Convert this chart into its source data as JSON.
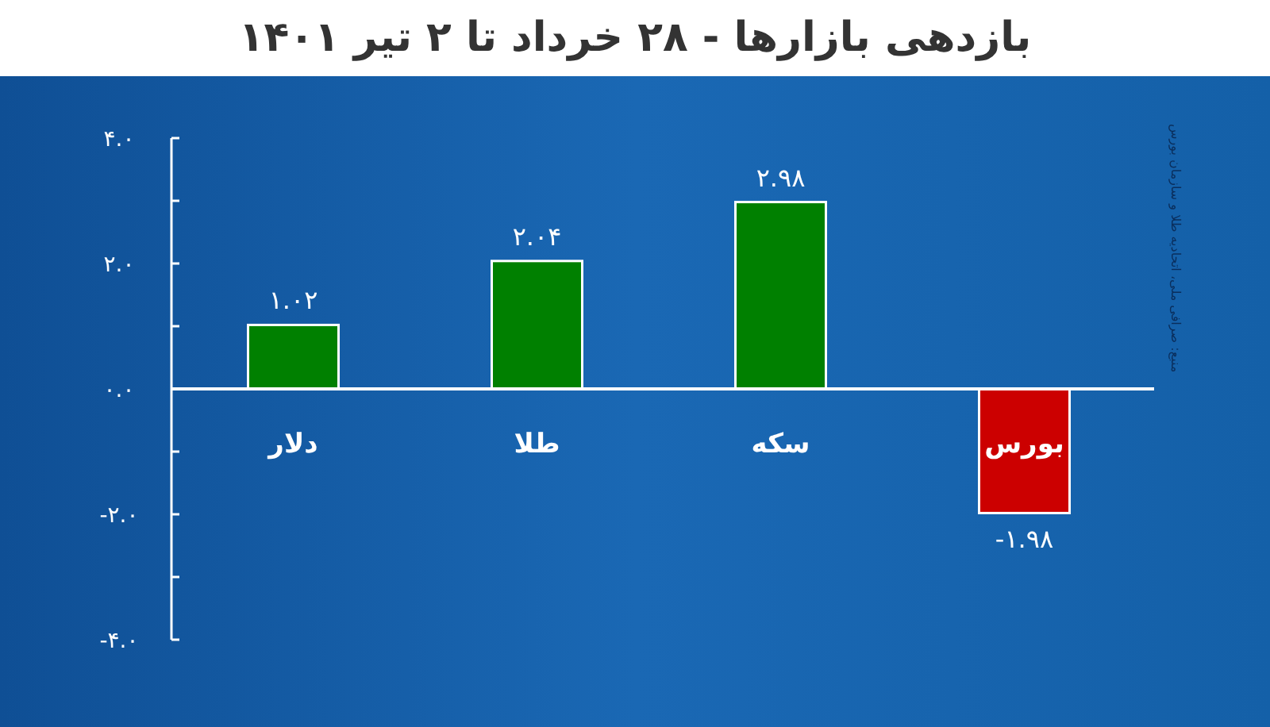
{
  "chart_data": {
    "type": "bar",
    "title": "بازدهی بازارها - ۲۸ خرداد تا ۲ تیر ۱۴۰۱",
    "categories": [
      "دلار",
      "طلا",
      "سکه",
      "بورس"
    ],
    "values": [
      1.02,
      2.04,
      2.98,
      -1.98
    ],
    "colors": [
      "#008000",
      "#008000",
      "#008000",
      "#cc0000"
    ],
    "value_labels": [
      "۱.۰۲",
      "۲.۰۴",
      "۲.۹۸",
      "-۱.۹۸"
    ],
    "ylim": [
      -4,
      4
    ],
    "yticks": [
      {
        "value": 4,
        "label": "۴.۰"
      },
      {
        "value": 3,
        "label": null
      },
      {
        "value": 2,
        "label": "۲.۰"
      },
      {
        "value": 1,
        "label": null
      },
      {
        "value": 0,
        "label": "۰.۰"
      },
      {
        "value": -1,
        "label": null
      },
      {
        "value": -2,
        "label": "-۲.۰"
      },
      {
        "value": -3,
        "label": null
      },
      {
        "value": -4,
        "label": "-۴.۰"
      }
    ],
    "grid": false,
    "annotations": [
      "منبع: صرافی ملی، اتحادیه طلا و سازمان بورس"
    ]
  }
}
